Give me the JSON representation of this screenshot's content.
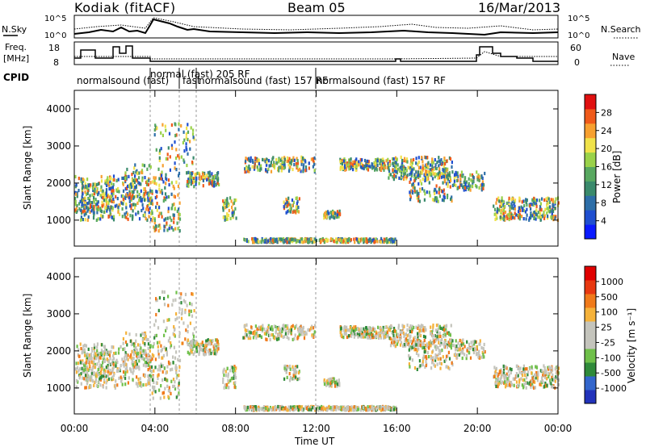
{
  "header": {
    "station": "Kodiak (fitACF)",
    "beam": "Beam 05",
    "date": "16/Mar/2013"
  },
  "top_panel": {
    "left_label": "N.Sky",
    "left_ticks": [
      "10^5",
      "10^0"
    ],
    "right_ticks": [
      "10^5",
      "10^0"
    ],
    "right_label": "N.Search"
  },
  "freq_panel": {
    "left_label_1": "Freq.",
    "left_label_2": "[MHz]",
    "left_ticks": [
      "18",
      "8"
    ],
    "right_ticks": [
      "60",
      "0"
    ],
    "right_label": "Nave"
  },
  "cpid": {
    "label": "CPID",
    "programs": [
      "normalsound (fast)",
      "normal (fast) 205 RF",
      "fast",
      "normalsound (fast) 157 RF",
      "normalsound (fast) 157 RF"
    ]
  },
  "chart_data": [
    {
      "type": "heatmap",
      "title": "Power",
      "ylabel": "Slant Range [km]",
      "xlabel": "",
      "x_ticks": [
        "00:00",
        "04:00",
        "08:00",
        "12:00",
        "16:00",
        "20:00",
        "00:00"
      ],
      "y_ticks": [
        "1000",
        "2000",
        "3000",
        "4000"
      ],
      "ylim": [
        300,
        4500
      ],
      "colorbar": {
        "label": "Power [dB]",
        "ticks": [
          "28",
          "24",
          "20",
          "16",
          "12",
          "8",
          "4"
        ],
        "colors": [
          "#0a1aff",
          "#1f4fd0",
          "#2d6ea8",
          "#3a8a6c",
          "#58a860",
          "#9ad24a",
          "#f0e24a",
          "#f7a030",
          "#f05a1a",
          "#e01010"
        ]
      }
    },
    {
      "type": "heatmap",
      "title": "Velocity",
      "ylabel": "Slant Range [km]",
      "xlabel": "Time UT",
      "x_ticks": [
        "00:00",
        "04:00",
        "08:00",
        "12:00",
        "16:00",
        "20:00",
        "00:00"
      ],
      "y_ticks": [
        "1000",
        "2000",
        "3000",
        "4000"
      ],
      "ylim": [
        300,
        4500
      ],
      "colorbar": {
        "label": "Velocity [m s⁻¹]",
        "ticks": [
          "1000",
          "500",
          "100",
          "25",
          "-25",
          "-100",
          "-500",
          "-1000"
        ],
        "colors": [
          "#2233bb",
          "#3366cc",
          "#2f8a3a",
          "#6fc04a",
          "#c4c4bc",
          "#c4c4bc",
          "#f5b23a",
          "#f07a1a",
          "#e83810",
          "#e00000"
        ]
      }
    }
  ]
}
